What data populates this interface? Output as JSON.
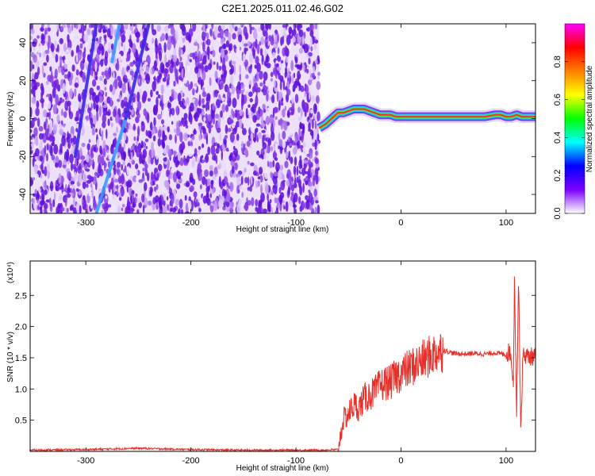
{
  "title": "C2E1.2025.011.02.46.G02",
  "chart_data": [
    {
      "type": "heatmap",
      "xlabel": "Height of straight line (km)",
      "ylabel": "Frequency (Hz)",
      "xlim": [
        -353,
        128
      ],
      "ylim": [
        -50,
        50
      ],
      "xticks": [
        -300,
        -200,
        -100,
        0,
        100
      ],
      "yticks": [
        -40,
        -20,
        0,
        20,
        40
      ],
      "colorbar": {
        "label": "Normalized spectral amplitude",
        "range": [
          0,
          1
        ],
        "ticks": [
          "0.0",
          "0.2",
          "0.4",
          "0.6",
          "0.8"
        ],
        "colors": [
          "#ffffff",
          "#7b00ff",
          "#0000ff",
          "#00ffff",
          "#00ff00",
          "#ffff00",
          "#ff7f00",
          "#ff0000",
          "#ff00ff"
        ]
      },
      "noise_region_km": [
        -353,
        -78
      ],
      "noise_color": "#7b22e8",
      "streaks": [
        {
          "x0": -290,
          "y0": -50,
          "x1": -262,
          "y1": 0,
          "color": "#3a9dff"
        },
        {
          "x0": -262,
          "y0": 0,
          "x1": -240,
          "y1": 50,
          "color": "#3a28e8"
        },
        {
          "x0": -310,
          "y0": -20,
          "x1": -290,
          "y1": 50,
          "color": "#3a28e8"
        },
        {
          "x0": -275,
          "y0": 30,
          "x1": -268,
          "y1": 50,
          "color": "#3a9dff"
        }
      ],
      "signal_track": {
        "x": [
          -78,
          -72,
          -68,
          -64,
          -60,
          -55,
          -50,
          -45,
          -40,
          -35,
          -30,
          -25,
          -20,
          -15,
          -10,
          -5,
          0,
          10,
          20,
          40,
          60,
          80,
          90,
          95,
          100,
          105,
          110,
          115,
          120,
          128
        ],
        "y": [
          -5,
          -3,
          -1,
          1,
          3,
          3,
          4,
          5,
          5,
          5,
          4,
          3,
          2,
          2,
          2,
          1,
          1,
          1,
          1,
          1,
          1,
          1,
          2,
          2,
          1,
          1,
          2,
          1,
          1,
          1
        ]
      }
    },
    {
      "type": "line",
      "xlabel": "Height of straight line (km)",
      "ylabel": "SNR (10 * v/v)",
      "y_multiplier": "(x10⁴)",
      "xlim": [
        -353,
        128
      ],
      "ylim": [
        0,
        3.05
      ],
      "xticks": [
        -300,
        -200,
        -100,
        0,
        100
      ],
      "yticks": [
        "0.5",
        "1.0",
        "1.5",
        "2.0",
        "2.5"
      ],
      "ytick_values": [
        0.5,
        1.0,
        1.5,
        2.0,
        2.5
      ],
      "color": "#e8302a",
      "series": [
        {
          "values_x": [
            -353,
            -300,
            -250,
            -200,
            -150,
            -100,
            -75,
            -60,
            -55,
            -50,
            -45,
            -40,
            -35,
            -30,
            -25,
            -20,
            -15,
            -10,
            -5,
            0,
            5,
            10,
            15,
            20,
            25,
            30,
            35,
            40,
            45,
            50,
            60,
            70,
            80,
            90,
            100,
            103,
            105,
            107,
            108,
            110,
            112,
            114,
            116,
            118,
            120,
            128
          ],
          "values_y": [
            0.02,
            0.03,
            0.05,
            0.03,
            0.02,
            0.02,
            0.02,
            0.03,
            0.5,
            0.6,
            0.75,
            0.7,
            0.85,
            0.9,
            0.95,
            1.05,
            1.1,
            1.1,
            1.2,
            1.25,
            1.3,
            1.35,
            1.4,
            1.45,
            1.5,
            1.55,
            1.6,
            1.62,
            1.6,
            1.57,
            1.56,
            1.57,
            1.56,
            1.58,
            1.55,
            1.6,
            1.5,
            1.1,
            2.9,
            0.6,
            2.85,
            0.3,
            1.55,
            1.55,
            1.52,
            1.52
          ]
        }
      ]
    }
  ]
}
